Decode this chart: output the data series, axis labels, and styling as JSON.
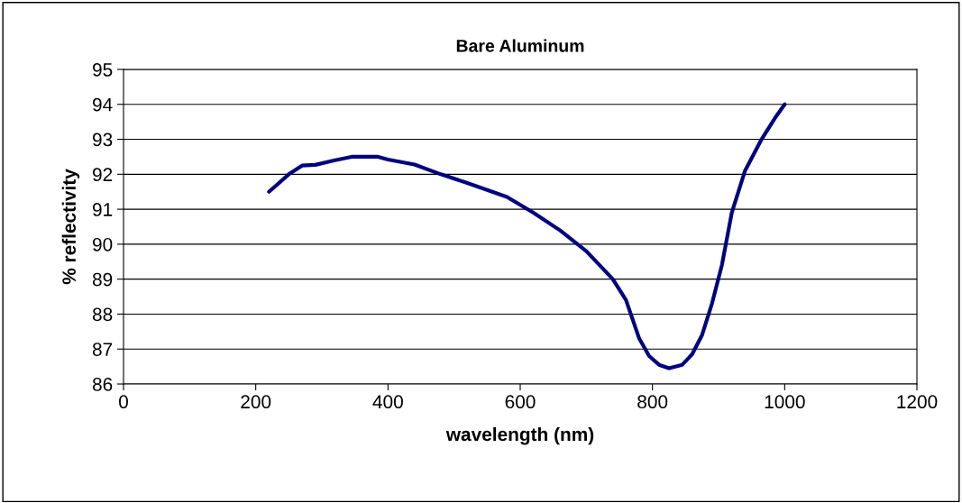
{
  "chart_data": {
    "type": "line",
    "title": "Bare Aluminum",
    "xlabel": "wavelength (nm)",
    "ylabel": "% reflectivity",
    "x": [
      220,
      250,
      270,
      290,
      320,
      345,
      385,
      400,
      440,
      480,
      520,
      580,
      620,
      660,
      700,
      740,
      760,
      780,
      795,
      810,
      825,
      845,
      860,
      875,
      890,
      905,
      920,
      940,
      965,
      985,
      1000
    ],
    "series": [
      {
        "color": "#000080",
        "values": [
          91.5,
          92.0,
          92.25,
          92.27,
          92.4,
          92.5,
          92.5,
          92.42,
          92.28,
          92.0,
          91.75,
          91.35,
          90.9,
          90.4,
          89.8,
          89.0,
          88.4,
          87.3,
          86.8,
          86.55,
          86.45,
          86.55,
          86.85,
          87.4,
          88.3,
          89.4,
          90.9,
          92.1,
          93.0,
          93.6,
          94.0
        ]
      }
    ],
    "xlim": [
      0,
      1200
    ],
    "xticks": [
      0,
      200,
      400,
      600,
      800,
      1000,
      1200
    ],
    "ylim": [
      86,
      95
    ],
    "yticks": [
      86,
      87,
      88,
      89,
      90,
      91,
      92,
      93,
      94,
      95
    ],
    "grid": "y",
    "legend": false,
    "marker": "none",
    "line_style": "solid"
  }
}
